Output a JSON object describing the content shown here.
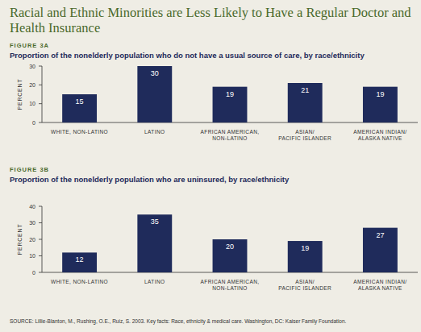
{
  "header": {
    "title": "Racial and Ethnic Minorities are Less Likely to Have a Regular Doctor and Health Insurance"
  },
  "chart_data": [
    {
      "type": "bar",
      "title": "FIGURE 3A",
      "subtitle": "Proportion of the nonelderly population who do not have a usual source of care, by race/ethnicity",
      "y_label": "PERCENT",
      "categories": [
        "WHITE, NON-LATINO",
        "LATINO",
        "AFRICAN AMERICAN,\nNON-LATINO",
        "ASIAN/\nPACIFIC ISLANDER",
        "AMERICAN INDIAN/\nALASKA NATIVE"
      ],
      "values": [
        15,
        30,
        19,
        21,
        19
      ],
      "color": "#1f2b5b",
      "ylim": [
        0,
        30
      ],
      "yticks": [
        0,
        10,
        20,
        30
      ],
      "grid": false,
      "data_labels": true
    },
    {
      "type": "bar",
      "title": "FIGURE 3B",
      "subtitle": "Proportion of the nonelderly population who are uninsured, by race/ethnicity",
      "y_label": "PERCENT",
      "categories": [
        "WHITE, NON-LATINO",
        "LATINO",
        "AFRICAN AMERICAN,\nNON-LATINO",
        "ASIAN/\nPACIFIC ISLANDER",
        "AMERICAN INDIAN/\nALASKA NATIVE"
      ],
      "values": [
        12,
        35,
        20,
        19,
        27
      ],
      "color": "#1f2b5b",
      "ylim": [
        0,
        40
      ],
      "yticks": [
        0,
        10,
        20,
        30,
        40
      ],
      "grid": false,
      "data_labels": true
    }
  ],
  "source": "SOURCE: Lillie-Blanton, M., Rushing, O.E., Ruiz, S. 2003. Key facts: Race, ethnicity & medical care. Washington, DC: Kaiser Family Foundation."
}
